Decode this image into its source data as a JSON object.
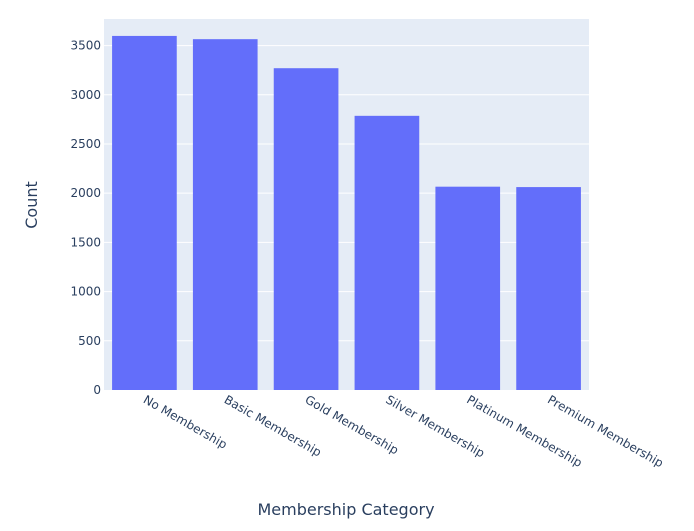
{
  "chart_data": {
    "type": "bar",
    "title": "",
    "xlabel": "Membership Category",
    "ylabel": "Count",
    "categories": [
      "No Membership",
      "Basic Membership",
      "Gold Membership",
      "Silver Membership",
      "Platinum Membership",
      "Premium Membership"
    ],
    "values": [
      3598,
      3565,
      3270,
      2786,
      2066,
      2062
    ],
    "ylim": [
      0,
      3770
    ],
    "yticks": [
      0,
      500,
      1000,
      1500,
      2000,
      2500,
      3000,
      3500
    ],
    "grid": true,
    "legend": "none",
    "colors": {
      "bar": "#636efa",
      "plot_background": "#e5ecf6",
      "grid": "#ffffff",
      "text": "#2a3f5f"
    }
  }
}
